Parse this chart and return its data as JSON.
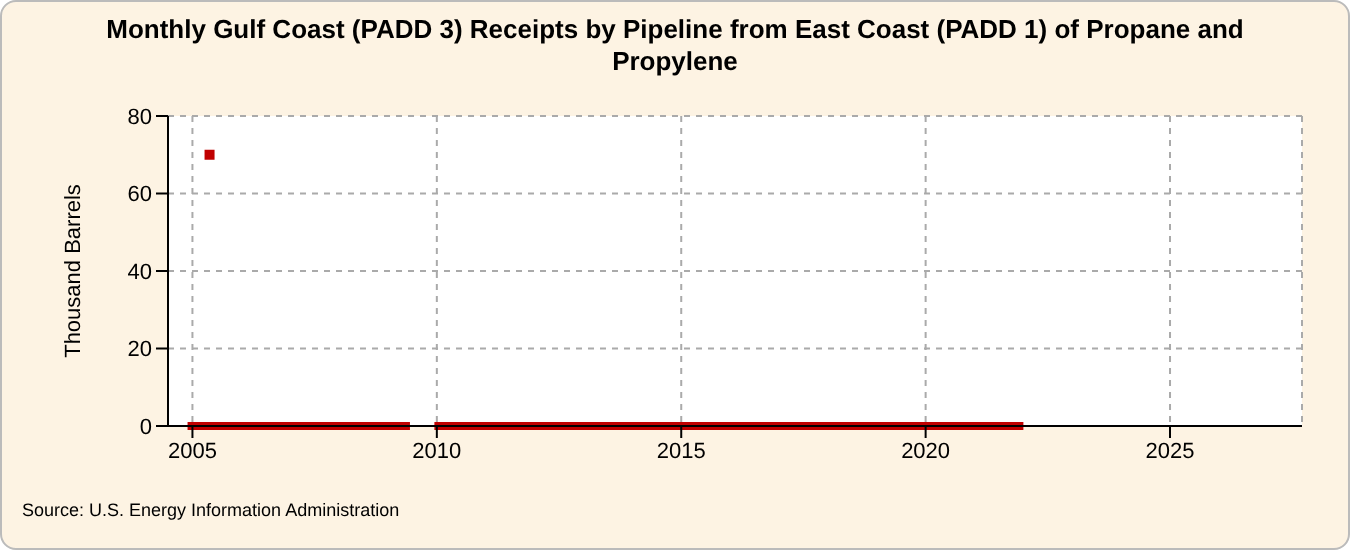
{
  "chart_data": {
    "type": "line",
    "title": "Monthly Gulf Coast (PADD 3) Receipts by Pipeline from East Coast (PADD 1) of Propane and Propylene",
    "ylabel": "Thousand Barrels",
    "series": [
      {
        "color": "#c00000",
        "x": [
          2004.9,
          2009.45,
          2009.7,
          2009.95,
          2022.0
        ],
        "values": [
          0,
          0,
          null,
          0,
          0
        ]
      },
      {
        "type": "scatter",
        "color": "#c00000",
        "marker": "square",
        "x": [
          2005.35
        ],
        "values": [
          70
        ]
      }
    ],
    "xlim": [
      2004.5,
      2027.7
    ],
    "xticks": [
      2005,
      2010,
      2015,
      2020,
      2025
    ],
    "ylim": [
      0,
      80
    ],
    "yticks": [
      0,
      20,
      40,
      60,
      80
    ],
    "grid": true,
    "annotations": [
      "Source: U.S. Energy Information Administration"
    ]
  }
}
